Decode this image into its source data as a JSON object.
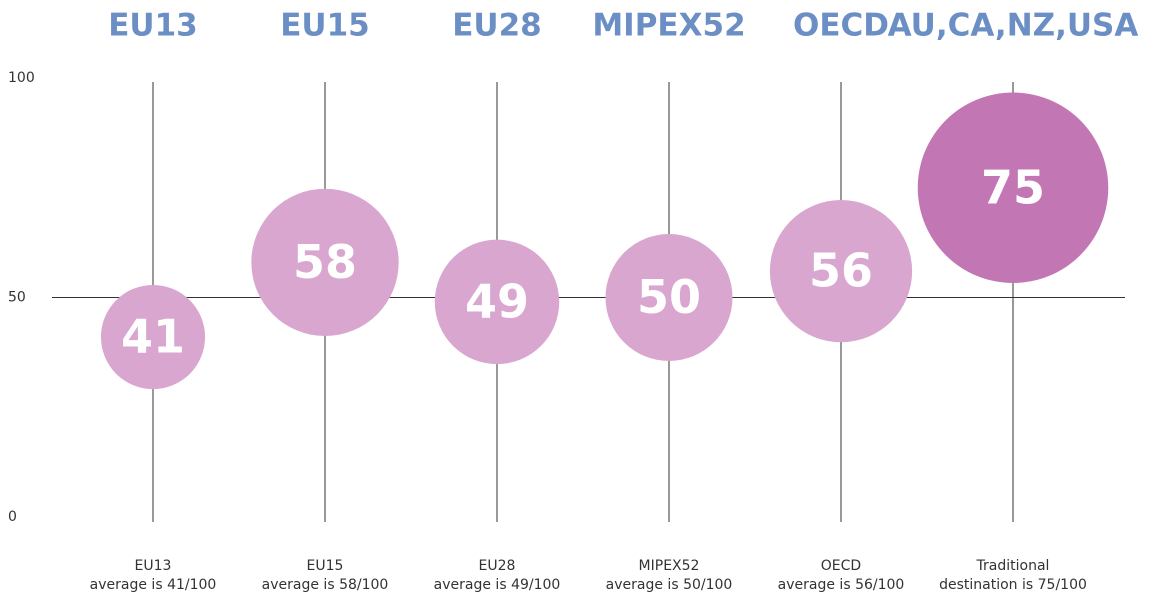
{
  "chart_data": {
    "type": "bubble",
    "categories": [
      "EU13",
      "EU15",
      "EU28",
      "MIPEX52",
      "OECD",
      "AU,CA,NZ,USA"
    ],
    "captions": [
      [
        "EU13",
        "average is 41/100"
      ],
      [
        "EU15",
        "average is 58/100"
      ],
      [
        "EU28",
        "average is 49/100"
      ],
      [
        "MIPEX52",
        "average is 50/100"
      ],
      [
        "OECD",
        "average is 56/100"
      ],
      [
        "Traditional",
        "destination is 75/100"
      ]
    ],
    "values": [
      41,
      58,
      49,
      50,
      56,
      75
    ],
    "colors": [
      "#d9a6cf",
      "#d9a6cf",
      "#d9a6cf",
      "#d9a6cf",
      "#d9a6cf",
      "#c277b4"
    ],
    "ylim": [
      0,
      100
    ],
    "yticks": [
      0,
      50,
      100
    ],
    "hline": 50
  }
}
